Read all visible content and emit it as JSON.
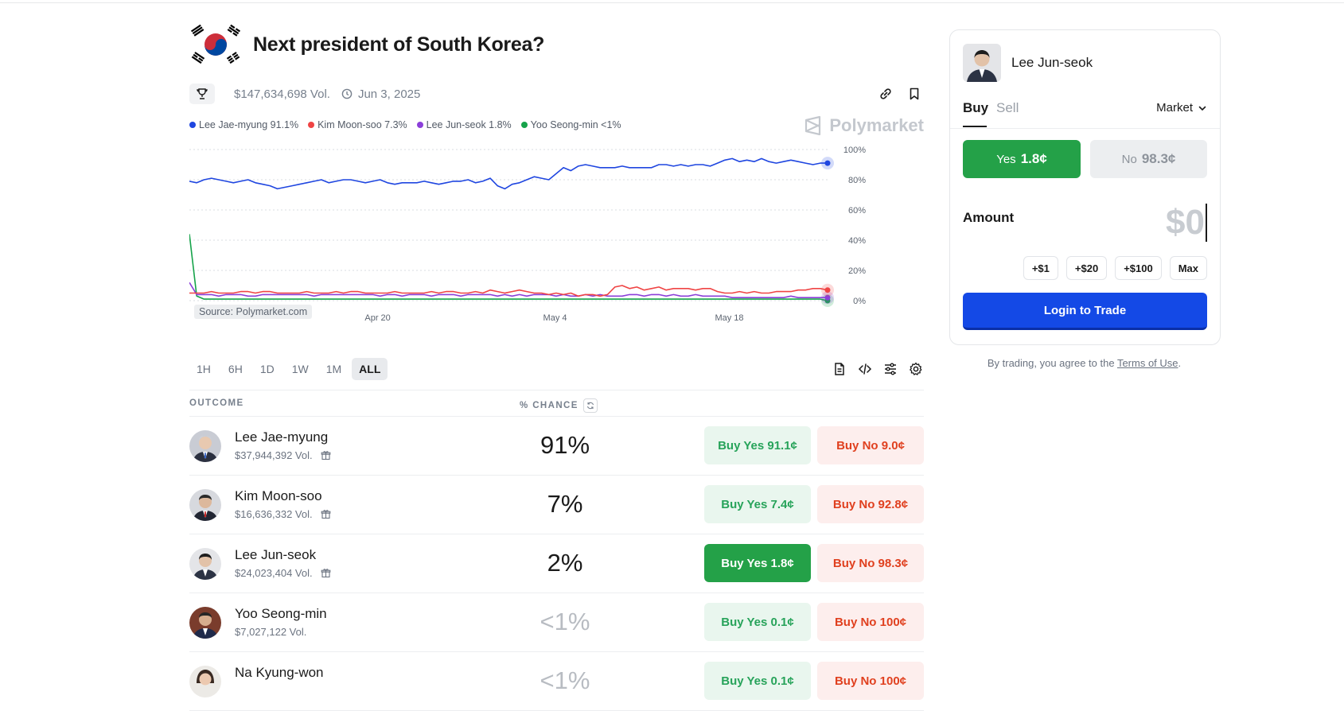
{
  "market": {
    "title": "Next president of South Korea?",
    "volume": "$147,634,698 Vol.",
    "end_date": "Jun 3, 2025",
    "watermark": "Polymarket",
    "source": "Source: Polymarket.com"
  },
  "legend": [
    {
      "label": "Lee Jae-myung 91.1%",
      "color": "#1f46e0"
    },
    {
      "label": "Kim Moon-soo 7.3%",
      "color": "#ef4444"
    },
    {
      "label": "Lee Jun-seok 1.8%",
      "color": "#8b3fd9"
    },
    {
      "label": "Yoo Seong-min <1%",
      "color": "#16a34a"
    }
  ],
  "chart_data": {
    "type": "line",
    "x_tick_labels": [
      "Apr 20",
      "May 4",
      "May 18"
    ],
    "y_tick_labels": [
      "100%",
      "80%",
      "60%",
      "40%",
      "20%",
      "0%"
    ],
    "ylim": [
      0,
      100
    ],
    "grid": true,
    "series": [
      {
        "name": "Lee Jae-myung",
        "color": "#1f46e0",
        "values": [
          79,
          78,
          80,
          81,
          80,
          79,
          78,
          79,
          80,
          78,
          77,
          76,
          74,
          75,
          76,
          77,
          78,
          79,
          80,
          78,
          79,
          80,
          80,
          79,
          78,
          79,
          80,
          78,
          77,
          78,
          78,
          78,
          79,
          78,
          77,
          78,
          79,
          79,
          80,
          78,
          79,
          81,
          76,
          74,
          77,
          78,
          80,
          82,
          81,
          80,
          84,
          88,
          86,
          89,
          90,
          89,
          88,
          88,
          88,
          89,
          88,
          88,
          88,
          88,
          90,
          90,
          89,
          90,
          89,
          90,
          90,
          89,
          91,
          93,
          94,
          92,
          93,
          92,
          94,
          92,
          91,
          92,
          93,
          92,
          91,
          90,
          91,
          91
        ]
      },
      {
        "name": "Kim Moon-soo",
        "color": "#ef4444",
        "values": [
          5,
          5,
          5,
          6,
          5,
          5,
          5,
          6,
          6,
          5,
          6,
          6,
          5,
          5,
          5,
          5,
          6,
          5,
          5,
          5,
          6,
          5,
          6,
          6,
          5,
          5,
          5,
          5,
          6,
          5,
          5,
          5,
          5,
          6,
          5,
          6,
          6,
          5,
          5,
          6,
          5,
          7,
          6,
          5,
          6,
          7,
          6,
          5,
          5,
          4,
          5,
          4,
          5,
          3,
          4,
          4,
          3,
          4,
          9,
          10,
          8,
          9,
          7,
          8,
          9,
          7,
          8,
          8,
          8,
          7,
          8,
          8,
          6,
          5,
          5,
          6,
          5,
          6,
          5,
          5,
          6,
          6,
          6,
          7,
          7,
          8,
          8,
          7
        ]
      },
      {
        "name": "Lee Jun-seok",
        "color": "#8b3fd9",
        "values": [
          12,
          4,
          4,
          4,
          3,
          4,
          4,
          4,
          3,
          3,
          4,
          4,
          4,
          4,
          4,
          4,
          4,
          3,
          4,
          4,
          4,
          4,
          4,
          4,
          4,
          4,
          3,
          4,
          4,
          3,
          4,
          4,
          4,
          3,
          4,
          4,
          4,
          3,
          4,
          4,
          4,
          4,
          3,
          4,
          3,
          4,
          3,
          4,
          4,
          4,
          3,
          4,
          3,
          3,
          4,
          3,
          4,
          3,
          3,
          3,
          4,
          4,
          3,
          4,
          4,
          3,
          4,
          3,
          3,
          4,
          3,
          3,
          3,
          3,
          2,
          2,
          2,
          2,
          2,
          2,
          2,
          2,
          3,
          2,
          2,
          2,
          2,
          2
        ]
      },
      {
        "name": "Yoo Seong-min",
        "color": "#16a34a",
        "values": [
          44,
          3,
          1,
          1,
          1,
          1,
          1,
          1,
          1,
          1,
          1,
          1,
          1,
          1,
          1,
          1,
          1,
          1,
          1,
          1,
          1,
          1,
          1,
          1,
          1,
          1,
          1,
          1,
          1,
          1,
          1,
          1,
          1,
          1,
          1,
          1,
          1,
          1,
          1,
          1,
          1,
          1,
          1,
          1,
          1,
          1,
          1,
          1,
          1,
          1,
          1,
          1,
          1,
          1,
          1,
          1,
          1,
          1,
          1,
          1,
          1,
          1,
          1,
          1,
          1,
          1,
          1,
          1,
          1,
          1,
          1,
          1,
          1,
          1,
          1,
          1,
          1,
          1,
          1,
          1,
          1,
          1,
          1,
          1,
          1,
          1,
          1,
          0
        ]
      }
    ]
  },
  "ranges": [
    "1H",
    "6H",
    "1D",
    "1W",
    "1M",
    "ALL"
  ],
  "table": {
    "col_outcome": "OUTCOME",
    "col_chance": "% CHANCE",
    "rows": [
      {
        "name": "Lee Jae-myung",
        "vol": "$37,944,392 Vol.",
        "chance": "91%",
        "yes": "Buy Yes 91.1¢",
        "no": "Buy No 9.0¢"
      },
      {
        "name": "Kim Moon-soo",
        "vol": "$16,636,332 Vol.",
        "chance": "7%",
        "yes": "Buy Yes 7.4¢",
        "no": "Buy No 92.8¢"
      },
      {
        "name": "Lee Jun-seok",
        "vol": "$24,023,404 Vol.",
        "chance": "2%",
        "yes": "Buy Yes 1.8¢",
        "no": "Buy No 98.3¢"
      },
      {
        "name": "Yoo Seong-min",
        "vol": "$7,027,122 Vol.",
        "chance": "<1%",
        "yes": "Buy Yes 0.1¢",
        "no": "Buy No 100¢"
      },
      {
        "name": "Na Kyung-won",
        "vol": "",
        "chance": "<1%",
        "yes": "Buy Yes 0.1¢",
        "no": "Buy No 100¢"
      }
    ]
  },
  "trade": {
    "candidate": "Lee Jun-seok",
    "tab_buy": "Buy",
    "tab_sell": "Sell",
    "order_type": "Market",
    "yes_label": "Yes",
    "yes_price": "1.8¢",
    "no_label": "No",
    "no_price": "98.3¢",
    "amount_label": "Amount",
    "amount_value": "$0",
    "quick": [
      "+$1",
      "+$20",
      "+$100",
      "Max"
    ],
    "login": "Login to Trade",
    "terms_prefix": "By trading, you agree to the ",
    "terms_link": "Terms of Use",
    "terms_suffix": "."
  }
}
